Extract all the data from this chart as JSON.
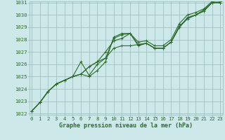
{
  "xlabel": "Graphe pression niveau de la mer (hPa)",
  "bg_color": "#cce8e8",
  "grid_color": "#99bbbb",
  "line_color": "#2d6b2d",
  "text_color": "#2d6b2d",
  "xmin": 0,
  "xmax": 23,
  "ymin": 1022,
  "ymax": 1031,
  "yticks": [
    1022,
    1023,
    1024,
    1025,
    1026,
    1027,
    1028,
    1029,
    1030,
    1031
  ],
  "xticks": [
    0,
    1,
    2,
    3,
    4,
    5,
    6,
    7,
    8,
    9,
    10,
    11,
    12,
    13,
    14,
    15,
    16,
    17,
    18,
    19,
    20,
    21,
    22,
    23
  ],
  "series": [
    [
      1022.2,
      1022.9,
      1023.8,
      1024.4,
      1024.7,
      1025.0,
      1025.2,
      1025.0,
      1025.5,
      1026.2,
      1028.2,
      1028.5,
      1028.5,
      1027.5,
      1027.7,
      1027.3,
      1027.3,
      1027.8,
      1029.0,
      1029.8,
      1030.0,
      1030.4,
      1031.0,
      1031.0
    ],
    [
      1022.2,
      1022.9,
      1023.8,
      1024.4,
      1024.7,
      1025.0,
      1025.2,
      1025.8,
      1026.2,
      1026.5,
      1027.3,
      1027.5,
      1027.5,
      1027.6,
      1027.7,
      1027.3,
      1027.3,
      1027.8,
      1029.0,
      1029.7,
      1030.0,
      1030.3,
      1031.0,
      1031.0
    ],
    [
      1022.2,
      1022.9,
      1023.8,
      1024.4,
      1024.7,
      1025.0,
      1026.2,
      1025.1,
      1026.0,
      1026.5,
      1028.1,
      1028.4,
      1028.5,
      1027.6,
      1027.7,
      1027.3,
      1027.3,
      1027.8,
      1029.1,
      1029.7,
      1030.0,
      1030.4,
      1031.0,
      1031.0
    ],
    [
      1022.2,
      1022.9,
      1023.8,
      1024.4,
      1024.7,
      1025.0,
      1025.2,
      1025.8,
      1026.2,
      1027.0,
      1027.9,
      1028.1,
      1028.5,
      1027.8,
      1027.9,
      1027.5,
      1027.5,
      1028.0,
      1029.3,
      1030.0,
      1030.2,
      1030.5,
      1031.1,
      1031.1
    ]
  ],
  "marker": "+",
  "markersize": 3.5,
  "linewidth": 0.8,
  "tick_fontsize": 5.2,
  "xlabel_fontsize": 6.0
}
